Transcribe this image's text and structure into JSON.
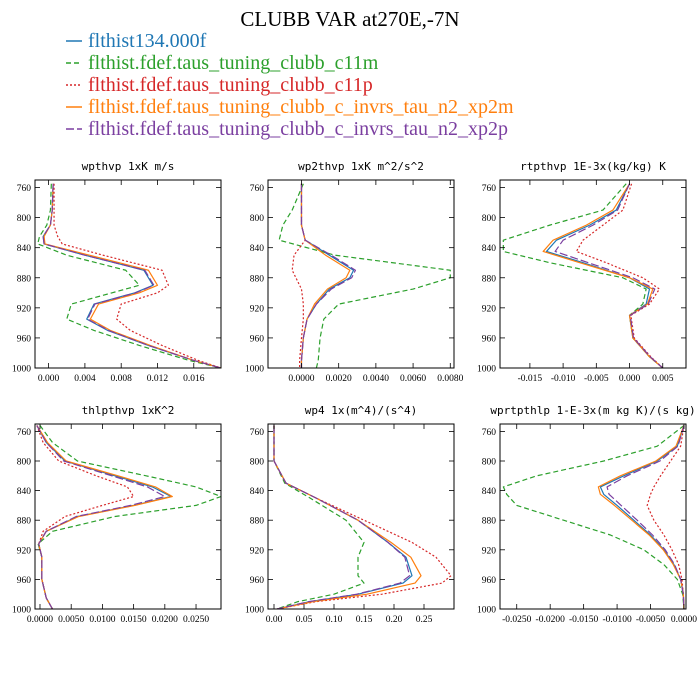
{
  "title": "CLUBB VAR at270E,-7N",
  "legend": [
    {
      "label": "flthist134.000f",
      "color": "#1f77b4",
      "dash": "solid"
    },
    {
      "label": "flthist.fdef.taus_tuning_clubb_c11m",
      "color": "#2ca02c",
      "dash": "dashed"
    },
    {
      "label": "flthist.fdef.taus_tuning_clubb_c11p",
      "color": "#d62728",
      "dash": "dotted"
    },
    {
      "label": "flthist.fdef.taus_tuning_clubb_c_invrs_tau_n2_xp2m",
      "color": "#ff7f0e",
      "dash": "solid"
    },
    {
      "label": "flthist.fdef.taus_tuning_clubb_c_invrs_tau_n2_xp2p",
      "color": "#7b3fa0",
      "dash": "longdash"
    }
  ],
  "chart_data": [
    {
      "type": "line",
      "title": "wpthvp  1xK m/s",
      "ylim": [
        1000,
        750
      ],
      "yticks": [
        760,
        800,
        840,
        880,
        920,
        960,
        1000
      ],
      "xlim": [
        -0.0015,
        0.019
      ],
      "xticks": [
        0.0,
        0.004,
        0.008,
        0.012,
        0.016
      ],
      "xticklabels": [
        "0.000",
        "0.004",
        "0.008",
        "0.012",
        "0.016"
      ],
      "y": [
        755,
        790,
        810,
        825,
        835,
        850,
        870,
        890,
        900,
        915,
        935,
        950,
        970,
        990,
        1000
      ],
      "series": [
        {
          "values": [
            0.0005,
            0.0004,
            0.0002,
            -0.0006,
            -0.0005,
            0.004,
            0.0105,
            0.0115,
            0.0095,
            0.005,
            0.0042,
            0.0065,
            0.011,
            0.016,
            0.019
          ]
        },
        {
          "values": [
            0.0003,
            0.0002,
            -0.0002,
            -0.001,
            -0.0012,
            0.002,
            0.0085,
            0.01,
            0.007,
            0.0025,
            0.002,
            0.005,
            0.01,
            0.0155,
            0.019
          ]
        },
        {
          "values": [
            0.0006,
            0.0006,
            0.0006,
            0.001,
            0.0015,
            0.006,
            0.0125,
            0.0132,
            0.012,
            0.008,
            0.0075,
            0.009,
            0.0125,
            0.0165,
            0.019
          ]
        },
        {
          "values": [
            0.0005,
            0.0004,
            0.0002,
            -0.0005,
            -0.0004,
            0.0045,
            0.011,
            0.012,
            0.01,
            0.0055,
            0.0046,
            0.0068,
            0.0112,
            0.016,
            0.019
          ]
        },
        {
          "values": [
            0.0005,
            0.0004,
            0.0002,
            -0.0006,
            -0.0005,
            0.004,
            0.0106,
            0.0116,
            0.0096,
            0.0051,
            0.0043,
            0.0066,
            0.011,
            0.016,
            0.019
          ]
        }
      ]
    },
    {
      "type": "line",
      "title": "wp2thvp  1xK m^2/s^2",
      "ylim": [
        1000,
        750
      ],
      "yticks": [
        760,
        800,
        840,
        880,
        920,
        960,
        1000
      ],
      "xlim": [
        -0.0018,
        0.0082
      ],
      "xticks": [
        0.0,
        0.002,
        0.004,
        0.006,
        0.008
      ],
      "xticklabels": [
        "0.0000",
        "0.0020",
        "0.0040",
        "0.0060",
        "0.0080"
      ],
      "y": [
        755,
        790,
        810,
        830,
        850,
        870,
        880,
        895,
        915,
        935,
        960,
        990,
        1000
      ],
      "series": [
        {
          "values": [
            0.0,
            0.0,
            0.0,
            0.0002,
            0.0015,
            0.0028,
            0.0026,
            0.0015,
            0.0008,
            0.0003,
            0.0001,
            0.0,
            0.0
          ]
        },
        {
          "values": [
            0.0001,
            -0.0005,
            -0.001,
            -0.0012,
            0.0018,
            0.008,
            0.008,
            0.006,
            0.002,
            0.0012,
            0.001,
            0.0009,
            0.0008
          ]
        },
        {
          "values": [
            0.0,
            0.0,
            0.0,
            0.0002,
            -0.0004,
            -0.0005,
            -0.0003,
            0.0,
            0.0001,
            0.0001,
            0.0,
            -0.0001,
            -0.0001
          ]
        },
        {
          "values": [
            0.0,
            0.0,
            0.0,
            0.0002,
            0.0013,
            0.0026,
            0.0024,
            0.0014,
            0.0007,
            0.0003,
            0.0001,
            0.0,
            0.0
          ]
        },
        {
          "values": [
            0.0,
            0.0,
            0.0,
            0.0002,
            0.0016,
            0.0029,
            0.0027,
            0.0016,
            0.0008,
            0.0003,
            0.0001,
            0.0,
            0.0
          ]
        }
      ]
    },
    {
      "type": "line",
      "title": "rtpthvp  1E-3x(kg/kg) K",
      "ylim": [
        1000,
        750
      ],
      "yticks": [
        760,
        800,
        840,
        880,
        920,
        960,
        1000
      ],
      "xlim": [
        -0.0195,
        0.0085
      ],
      "xticks": [
        -0.015,
        -0.01,
        -0.005,
        0.0,
        0.005
      ],
      "xticklabels": [
        "-0.015",
        "-0.010",
        "-0.005",
        "0.000",
        "0.005"
      ],
      "y": [
        755,
        790,
        810,
        830,
        845,
        860,
        880,
        895,
        915,
        930,
        960,
        985,
        1000
      ],
      "series": [
        {
          "values": [
            0.0,
            -0.002,
            -0.006,
            -0.011,
            -0.0125,
            -0.007,
            0.0,
            0.003,
            0.0025,
            0.0,
            0.0005,
            0.003,
            0.005
          ]
        },
        {
          "values": [
            -0.0005,
            -0.004,
            -0.012,
            -0.019,
            -0.019,
            -0.012,
            -0.001,
            0.0025,
            0.002,
            0.0,
            0.0005,
            0.003,
            0.005
          ]
        },
        {
          "values": [
            0.0003,
            -0.001,
            -0.004,
            -0.007,
            -0.008,
            -0.0035,
            0.002,
            0.0045,
            0.003,
            0.0002,
            0.0007,
            0.0032,
            0.005
          ]
        },
        {
          "values": [
            0.0,
            -0.0025,
            -0.0065,
            -0.0115,
            -0.013,
            -0.0075,
            0.0,
            0.0035,
            0.0027,
            0.0,
            0.0005,
            0.003,
            0.005
          ]
        },
        {
          "values": [
            0.0,
            -0.0018,
            -0.0055,
            -0.01,
            -0.0112,
            -0.0062,
            0.0005,
            0.0038,
            0.0028,
            0.0001,
            0.0006,
            0.0031,
            0.005
          ]
        }
      ]
    },
    {
      "type": "line",
      "title": "thlpthvp  1xK^2",
      "ylim": [
        1000,
        750
      ],
      "yticks": [
        760,
        800,
        840,
        880,
        920,
        960,
        1000
      ],
      "xlim": [
        -0.0008,
        0.029
      ],
      "xticks": [
        0.0,
        0.005,
        0.01,
        0.015,
        0.02,
        0.025
      ],
      "xticklabels": [
        "0.0000",
        "0.0050",
        "0.0100",
        "0.0150",
        "0.0200",
        "0.0250"
      ],
      "y": [
        752,
        775,
        800,
        820,
        835,
        848,
        860,
        875,
        895,
        912,
        930,
        960,
        985,
        1000
      ],
      "series": [
        {
          "values": [
            -0.0005,
            0.001,
            0.004,
            0.012,
            0.018,
            0.021,
            0.015,
            0.006,
            0.001,
            -0.0002,
            0.0003,
            0.0003,
            0.001,
            0.002
          ]
        },
        {
          "values": [
            0.0,
            0.002,
            0.006,
            0.017,
            0.025,
            0.029,
            0.025,
            0.012,
            0.002,
            -0.0003,
            0.0003,
            0.0003,
            0.001,
            0.002
          ]
        },
        {
          "values": [
            -0.0005,
            0.0005,
            0.003,
            0.009,
            0.014,
            0.015,
            0.01,
            0.004,
            0.0005,
            -0.0002,
            0.0003,
            0.0003,
            0.001,
            0.002
          ]
        },
        {
          "values": [
            -0.0005,
            0.0012,
            0.0042,
            0.0125,
            0.0185,
            0.0212,
            0.0152,
            0.0062,
            0.001,
            -0.0002,
            0.0003,
            0.0003,
            0.001,
            0.002
          ]
        },
        {
          "values": [
            -0.0005,
            0.001,
            0.0038,
            0.0115,
            0.0172,
            0.02,
            0.0145,
            0.0058,
            0.001,
            -0.0002,
            0.0003,
            0.0003,
            0.001,
            0.002
          ]
        }
      ]
    },
    {
      "type": "line",
      "title": "wp4  1x(m^4)/(s^4)",
      "ylim": [
        1000,
        750
      ],
      "yticks": [
        760,
        800,
        840,
        880,
        920,
        960,
        1000
      ],
      "xlim": [
        -0.01,
        0.3
      ],
      "xticks": [
        0.0,
        0.05,
        0.1,
        0.15,
        0.2,
        0.25
      ],
      "xticklabels": [
        "0.00",
        "0.05",
        "0.10",
        "0.15",
        "0.20",
        "0.25"
      ],
      "y": [
        752,
        800,
        830,
        850,
        880,
        910,
        930,
        955,
        965,
        980,
        990,
        1000
      ],
      "series": [
        {
          "values": [
            0.0,
            0.0,
            0.02,
            0.07,
            0.14,
            0.19,
            0.22,
            0.23,
            0.215,
            0.14,
            0.06,
            0.005
          ]
        },
        {
          "values": [
            0.0,
            0.0,
            0.018,
            0.06,
            0.12,
            0.15,
            0.14,
            0.14,
            0.15,
            0.1,
            0.04,
            0.005
          ]
        },
        {
          "values": [
            0.0,
            0.0,
            0.02,
            0.07,
            0.15,
            0.23,
            0.27,
            0.295,
            0.28,
            0.18,
            0.07,
            0.005
          ]
        },
        {
          "values": [
            0.0,
            0.0,
            0.02,
            0.07,
            0.14,
            0.195,
            0.228,
            0.245,
            0.235,
            0.155,
            0.065,
            0.005
          ]
        },
        {
          "values": [
            0.0,
            0.0,
            0.02,
            0.07,
            0.14,
            0.19,
            0.218,
            0.226,
            0.21,
            0.138,
            0.058,
            0.005
          ]
        }
      ]
    },
    {
      "type": "line",
      "title": "wprtpthlp  1-E-3x(m kg K)/(s kg)",
      "ylim": [
        1000,
        750
      ],
      "yticks": [
        760,
        800,
        840,
        880,
        920,
        960,
        1000
      ],
      "xlim": [
        -0.0275,
        0.0003
      ],
      "xticks": [
        -0.025,
        -0.02,
        -0.015,
        -0.01,
        -0.005,
        0.0
      ],
      "xticklabels": [
        "-0.0250",
        "-0.0200",
        "-0.0150",
        "-0.0100",
        "-0.0050",
        "0.0000"
      ],
      "y": [
        752,
        780,
        800,
        820,
        835,
        845,
        860,
        880,
        900,
        920,
        940,
        960,
        980,
        1000
      ],
      "series": [
        {
          "values": [
            0.0,
            -0.001,
            -0.004,
            -0.009,
            -0.0125,
            -0.012,
            -0.01,
            -0.0075,
            -0.005,
            -0.003,
            -0.0015,
            -0.0005,
            -0.0001,
            0.0
          ]
        },
        {
          "values": [
            0.0,
            -0.004,
            -0.012,
            -0.022,
            -0.027,
            -0.0265,
            -0.025,
            -0.018,
            -0.011,
            -0.006,
            -0.003,
            -0.001,
            -0.0002,
            0.0
          ]
        },
        {
          "values": [
            0.0,
            -0.0005,
            -0.002,
            -0.0035,
            -0.0045,
            -0.005,
            -0.0055,
            -0.0045,
            -0.003,
            -0.0018,
            -0.0008,
            -0.0003,
            -0.0001,
            0.0
          ]
        },
        {
          "values": [
            0.0,
            -0.0012,
            -0.0042,
            -0.0095,
            -0.0128,
            -0.0125,
            -0.0104,
            -0.0078,
            -0.0052,
            -0.0031,
            -0.0016,
            -0.0005,
            -0.0001,
            0.0
          ]
        },
        {
          "values": [
            0.0,
            -0.0009,
            -0.0036,
            -0.0085,
            -0.0115,
            -0.0112,
            -0.0094,
            -0.007,
            -0.0047,
            -0.0028,
            -0.0014,
            -0.0005,
            -0.0001,
            0.0
          ]
        }
      ]
    }
  ]
}
